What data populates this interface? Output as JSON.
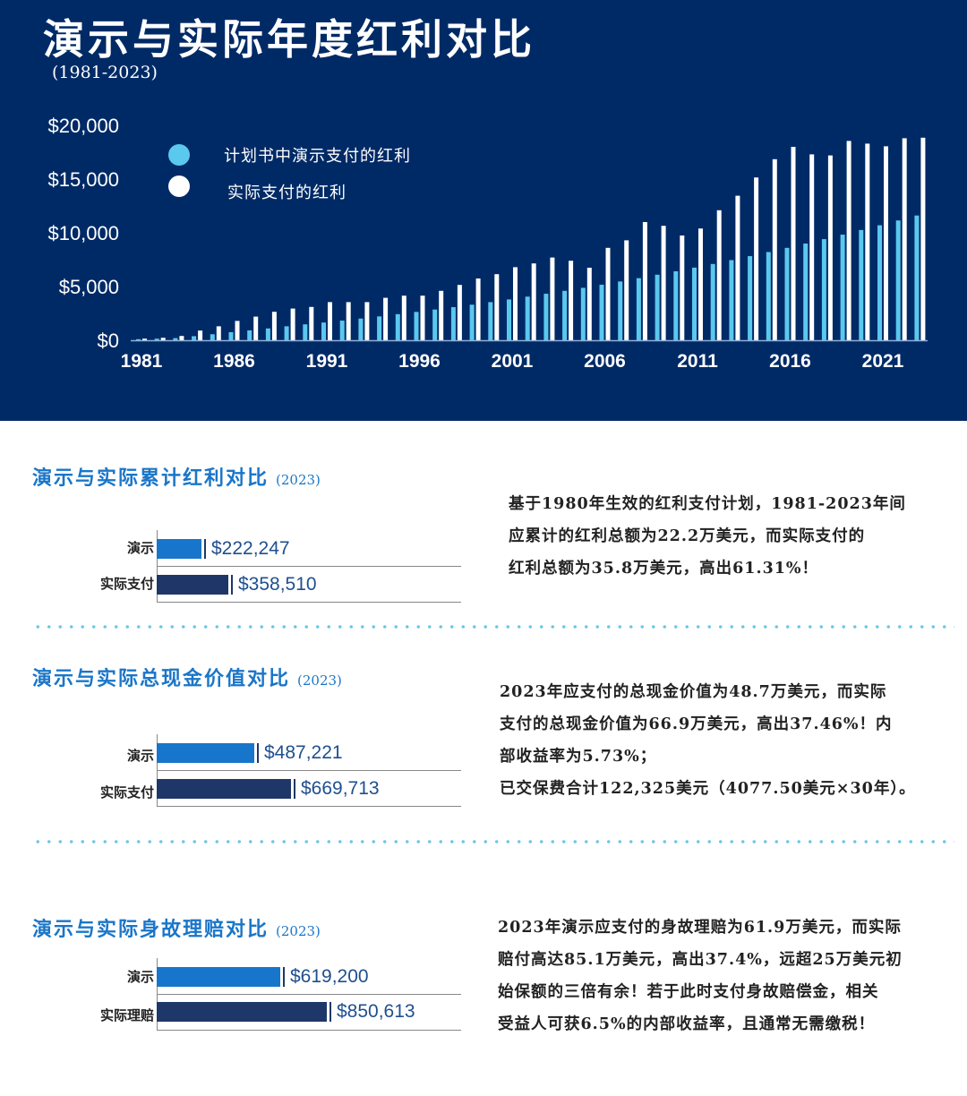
{
  "header": {
    "title": "演示与实际年度红利对比",
    "subtitle": "(1981-2023)"
  },
  "chart_data": {
    "type": "bar",
    "title": "演示与实际年度红利对比",
    "subtitle": "(1981-2023)",
    "y_ticks": [
      "$20,000",
      "$15,000",
      "$10,000",
      "$5,000",
      "$0"
    ],
    "x_ticks": [
      "1981",
      "1986",
      "1991",
      "1996",
      "2001",
      "2006",
      "2011",
      "2016",
      "2021"
    ],
    "ylim": [
      0,
      20000
    ],
    "colors": {
      "illustrated": "#5bc8ee",
      "actual": "#ffffff"
    },
    "legend": [
      "计划书中演示支付的红利",
      "实际支付的红利"
    ],
    "categories": [
      1981,
      1982,
      1983,
      1984,
      1985,
      1986,
      1987,
      1988,
      1989,
      1990,
      1991,
      1992,
      1993,
      1994,
      1995,
      1996,
      1997,
      1998,
      1999,
      2000,
      2001,
      2002,
      2003,
      2004,
      2005,
      2006,
      2007,
      2008,
      2009,
      2010,
      2011,
      2012,
      2013,
      2014,
      2015,
      2016,
      2017,
      2018,
      2019,
      2020,
      2021,
      2022,
      2023
    ],
    "series": [
      {
        "name": "计划书中演示支付的红利",
        "values": [
          100,
          150,
          200,
          380,
          560,
          750,
          920,
          1100,
          1300,
          1480,
          1650,
          1830,
          2020,
          2220,
          2430,
          2640,
          2860,
          3080,
          3310,
          3550,
          3800,
          4060,
          4330,
          4600,
          4880,
          5170,
          5470,
          5780,
          6100,
          6420,
          6760,
          7100,
          7460,
          7830,
          8210,
          8600,
          9000,
          9410,
          9830,
          10260,
          10700,
          11150,
          11610
        ]
      },
      {
        "name": "实际支付的红利",
        "values": [
          150,
          230,
          400,
          900,
          1300,
          1800,
          2200,
          2650,
          2950,
          3100,
          3550,
          3550,
          3550,
          3950,
          4150,
          4150,
          4600,
          5150,
          5750,
          6150,
          6800,
          7150,
          7700,
          7400,
          6750,
          8600,
          9300,
          11000,
          10650,
          9750,
          10400,
          12100,
          13450,
          15150,
          16850,
          18000,
          17300,
          17200,
          18550,
          18300,
          18050,
          18800,
          18850
        ]
      }
    ]
  },
  "sections": [
    {
      "title": "演示与实际累计红利对比",
      "year": "(2023)",
      "chart_data": {
        "type": "bar",
        "categories": [
          "演示",
          "实际支付"
        ],
        "values": [
          222247,
          358510
        ],
        "labels": [
          "$222,247",
          "$358,510"
        ]
      },
      "text": [
        "基于1980年生效的红利支付计划，1981-2023年间",
        "应累计的红利总额为22.2万美元，而实际支付的",
        "红利总额为35.8万美元，高出61.31%！"
      ]
    },
    {
      "title": "演示与实际总现金价值对比",
      "year": "(2023)",
      "chart_data": {
        "type": "bar",
        "categories": [
          "演示",
          "实际支付"
        ],
        "values": [
          487221,
          669713
        ],
        "labels": [
          "$487,221",
          "$669,713"
        ]
      },
      "text": [
        "2023年应支付的总现金价值为48.7万美元，而实际",
        "支付的总现金价值为66.9万美元，高出37.46%！内",
        "部收益率为5.73%；",
        "已交保费合计122,325美元（4077.50美元×30年）。"
      ]
    },
    {
      "title": "演示与实际身故理赔对比",
      "year": "(2023)",
      "chart_data": {
        "type": "bar",
        "categories": [
          "演示",
          "实际理赔"
        ],
        "values": [
          619200,
          850613
        ],
        "labels": [
          "$619,200",
          "$850,613"
        ]
      },
      "text": [
        "2023年演示应支付的身故理赔为61.9万美元，而实际",
        "赔付高达85.1万美元，高出37.4%，远超25万美元初",
        "始保额的三倍有余！若于此时支付身故赔偿金，相关",
        "受益人可获6.5%的内部收益率，且通常无需缴税！"
      ]
    }
  ]
}
